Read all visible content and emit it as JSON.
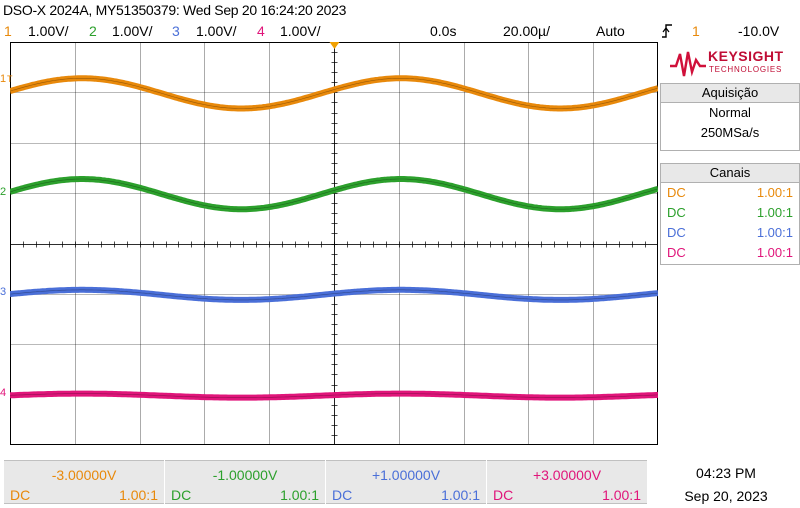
{
  "title": "DSO-X 2024A, MY51350379: Wed Sep 20 16:24:20 2023",
  "channels_bar": {
    "ch1_num": "1",
    "ch1_scale": "1.00V/",
    "ch2_num": "2",
    "ch2_scale": "1.00V/",
    "ch3_num": "3",
    "ch3_scale": "1.00V/",
    "ch4_num": "4",
    "ch4_scale": "1.00V/",
    "time_delay": "0.0s",
    "timebase": "20.00µ/",
    "trigger_mode": "Auto",
    "trigger_slope_icon": "rising-edge-icon",
    "trigger_source": "1",
    "trigger_level": "-10.0V"
  },
  "logo": {
    "brand": "KEYSIGHT",
    "sub": "TECHNOLOGIES"
  },
  "acquisition": {
    "header": "Aquisição",
    "mode": "Normal",
    "rate": "250MSa/s"
  },
  "canais": {
    "header": "Canais",
    "rows": [
      {
        "coupling": "DC",
        "ratio": "1.00:1"
      },
      {
        "coupling": "DC",
        "ratio": "1.00:1"
      },
      {
        "coupling": "DC",
        "ratio": "1.00:1"
      },
      {
        "coupling": "DC",
        "ratio": "1.00:1"
      }
    ]
  },
  "markers": {
    "m1": "1",
    "m2": "2",
    "m3": "3",
    "m4": "4",
    "trig": "T"
  },
  "bottom": [
    {
      "offset": "-3.00000V",
      "coupling": "DC",
      "ratio": "1.00:1"
    },
    {
      "offset": "-1.00000V",
      "coupling": "DC",
      "ratio": "1.00:1"
    },
    {
      "offset": "+1.00000V",
      "coupling": "DC",
      "ratio": "1.00:1"
    },
    {
      "offset": "+3.00000V",
      "coupling": "DC",
      "ratio": "1.00:1"
    }
  ],
  "clock": {
    "time": "04:23 PM",
    "date": "Sep 20, 2023"
  },
  "colors": {
    "ch1": "#e8890b",
    "ch2": "#2ca02c",
    "ch3": "#4a6fd8",
    "ch4": "#e0157a",
    "grid": "#000000"
  },
  "waveforms": [
    {
      "channel": "1",
      "amplitude_v": 0.3,
      "offset_v": -3.0
    },
    {
      "channel": "2",
      "amplitude_v": 0.3,
      "offset_v": -1.0
    },
    {
      "channel": "3",
      "amplitude_v": 0.1,
      "offset_v": 1.0
    },
    {
      "channel": "4",
      "amplitude_v": 0.04,
      "offset_v": 3.0
    }
  ]
}
